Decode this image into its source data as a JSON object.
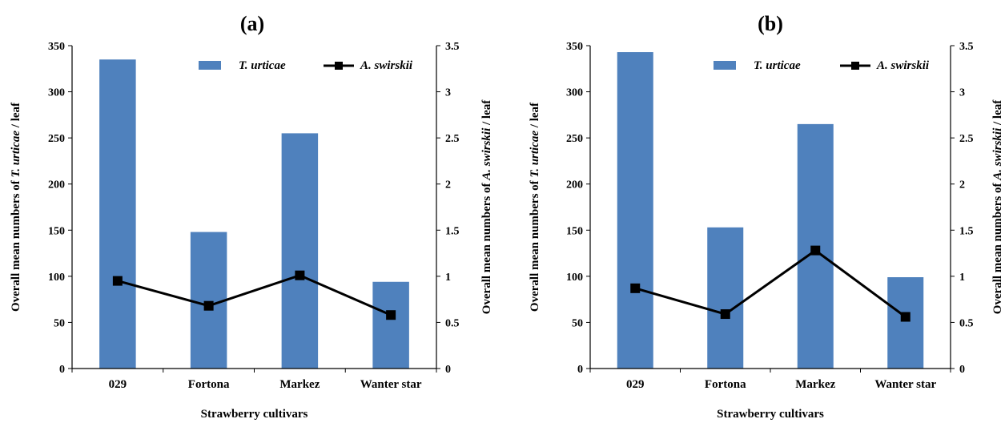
{
  "chart_data": [
    {
      "type": "bar",
      "title": "(a)",
      "categories": [
        "029",
        "Fortona",
        "Markez",
        "Wanter star"
      ],
      "xlabel": "Strawberry cultivars",
      "ylabel": {
        "pre": "Overall mean numbers of ",
        "italic": "T. urticae",
        "post": " / leaf"
      },
      "y2label": {
        "pre": "Overall mean numbers of ",
        "italic": "A. swirskii",
        "post": " / leaf"
      },
      "ylim": [
        0,
        350
      ],
      "y2lim": [
        0,
        3.5
      ],
      "yticks": [
        "0",
        "50",
        "100",
        "150",
        "200",
        "250",
        "300",
        "350"
      ],
      "y2ticks": [
        "0",
        "0.5",
        "1",
        "1.5",
        "2",
        "2.5",
        "3",
        "3.5"
      ],
      "series": [
        {
          "name": "T. urticae",
          "type": "bar",
          "axis": "left",
          "color": "#4f81bd",
          "values": [
            335,
            148,
            255,
            94
          ]
        },
        {
          "name": "A. swirskii",
          "type": "line",
          "axis": "right",
          "color": "#000000",
          "values": [
            0.95,
            0.68,
            1.01,
            0.58
          ]
        }
      ],
      "legend": "top-right"
    },
    {
      "type": "bar",
      "title": "(b)",
      "categories": [
        "029",
        "Fortona",
        "Markez",
        "Wanter star"
      ],
      "xlabel": "Strawberry cultivars",
      "ylabel": {
        "pre": "Overall mean numbers of ",
        "italic": "T. urticae",
        "post": " / leaf"
      },
      "y2label": {
        "pre": "Overall mean numbers of ",
        "italic": "A. swirskii",
        "post": " / leaf"
      },
      "ylim": [
        0,
        350
      ],
      "y2lim": [
        0,
        3.5
      ],
      "yticks": [
        "0",
        "50",
        "100",
        "150",
        "200",
        "250",
        "300",
        "350"
      ],
      "y2ticks": [
        "0",
        "0.5",
        "1",
        "1.5",
        "2",
        "2.5",
        "3",
        "3.5"
      ],
      "series": [
        {
          "name": "T. urticae",
          "type": "bar",
          "axis": "left",
          "color": "#4f81bd",
          "values": [
            343,
            153,
            265,
            99
          ]
        },
        {
          "name": "A. swirskii",
          "type": "line",
          "axis": "right",
          "color": "#000000",
          "values": [
            0.87,
            0.59,
            1.28,
            0.56
          ]
        }
      ],
      "legend": "top-right"
    }
  ]
}
